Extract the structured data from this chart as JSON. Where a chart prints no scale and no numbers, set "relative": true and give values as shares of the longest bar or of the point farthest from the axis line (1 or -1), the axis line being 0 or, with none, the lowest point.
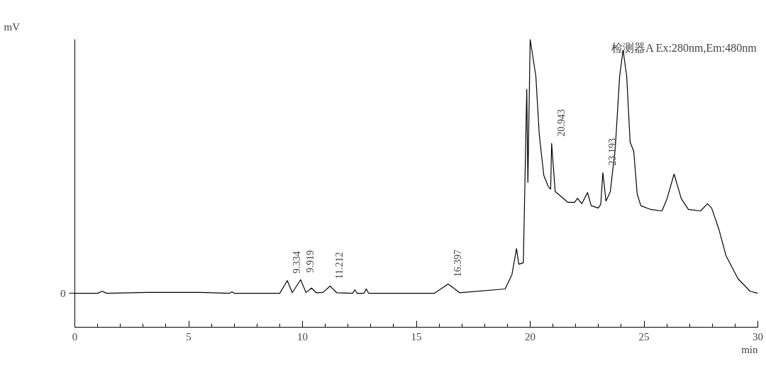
{
  "chart_data": {
    "type": "line",
    "relative": true,
    "xlabel": "min",
    "ylabel": "mV",
    "xlim": [
      0,
      30
    ],
    "xticks": [
      0,
      5,
      10,
      15,
      20,
      25,
      30
    ],
    "grid": false,
    "marker": "none",
    "line_style": "solid",
    "x": [
      0,
      1.0,
      1.2,
      1.4,
      3.2,
      5.5,
      6.8,
      6.9,
      7.0,
      9.0,
      9.334,
      9.55,
      9.919,
      10.15,
      10.4,
      10.6,
      10.9,
      11.212,
      11.5,
      12.2,
      12.3,
      12.4,
      12.7,
      12.8,
      12.9,
      15.8,
      16.397,
      16.9,
      18.9,
      19.2,
      19.4,
      19.5,
      19.7,
      19.85,
      19.9,
      20.0,
      20.25,
      20.4,
      20.6,
      20.8,
      20.9,
      20.943,
      21.1,
      21.3,
      21.65,
      21.95,
      22.08,
      22.27,
      22.52,
      22.68,
      22.99,
      23.1,
      23.193,
      23.33,
      23.52,
      23.74,
      23.93,
      24.08,
      24.24,
      24.39,
      24.55,
      24.7,
      24.86,
      25.3,
      25.79,
      26.01,
      26.32,
      26.64,
      26.95,
      27.48,
      27.79,
      27.97,
      28.29,
      28.6,
      29.13,
      29.66,
      30.0
    ],
    "series": [
      {
        "color": "#000000",
        "values": [
          0.118,
          0.118,
          0.125,
          0.118,
          0.121,
          0.121,
          0.118,
          0.123,
          0.118,
          0.118,
          0.162,
          0.12,
          0.165,
          0.121,
          0.136,
          0.12,
          0.121,
          0.143,
          0.12,
          0.118,
          0.13,
          0.118,
          0.118,
          0.133,
          0.118,
          0.118,
          0.15,
          0.12,
          0.133,
          0.183,
          0.273,
          0.219,
          0.224,
          0.827,
          0.503,
          1,
          0.872,
          0.668,
          0.527,
          0.488,
          0.48,
          0.638,
          0.471,
          0.458,
          0.434,
          0.434,
          0.448,
          0.429,
          0.468,
          0.422,
          0.414,
          0.427,
          0.537,
          0.438,
          0.471,
          0.625,
          0.872,
          0.963,
          0.872,
          0.643,
          0.611,
          0.463,
          0.422,
          0.409,
          0.404,
          0.446,
          0.532,
          0.446,
          0.409,
          0.404,
          0.429,
          0.414,
          0.34,
          0.249,
          0.168,
          0.125,
          0.118
        ]
      }
    ],
    "annotations": [
      "检测器A Ex:280nm,Em:480nm",
      "0",
      {
        "text": "9.334",
        "x": 9.334,
        "y": 0.162
      },
      {
        "text": "9.919",
        "x": 9.919,
        "y": 0.165
      },
      {
        "text": "11.212",
        "x": 11.212,
        "y": 0.143
      },
      {
        "text": "16.397",
        "x": 16.397,
        "y": 0.15
      },
      {
        "text": "20.943",
        "x": 20.943,
        "y": 0.638
      },
      {
        "text": "23.193",
        "x": 23.193,
        "y": 0.537
      }
    ]
  }
}
